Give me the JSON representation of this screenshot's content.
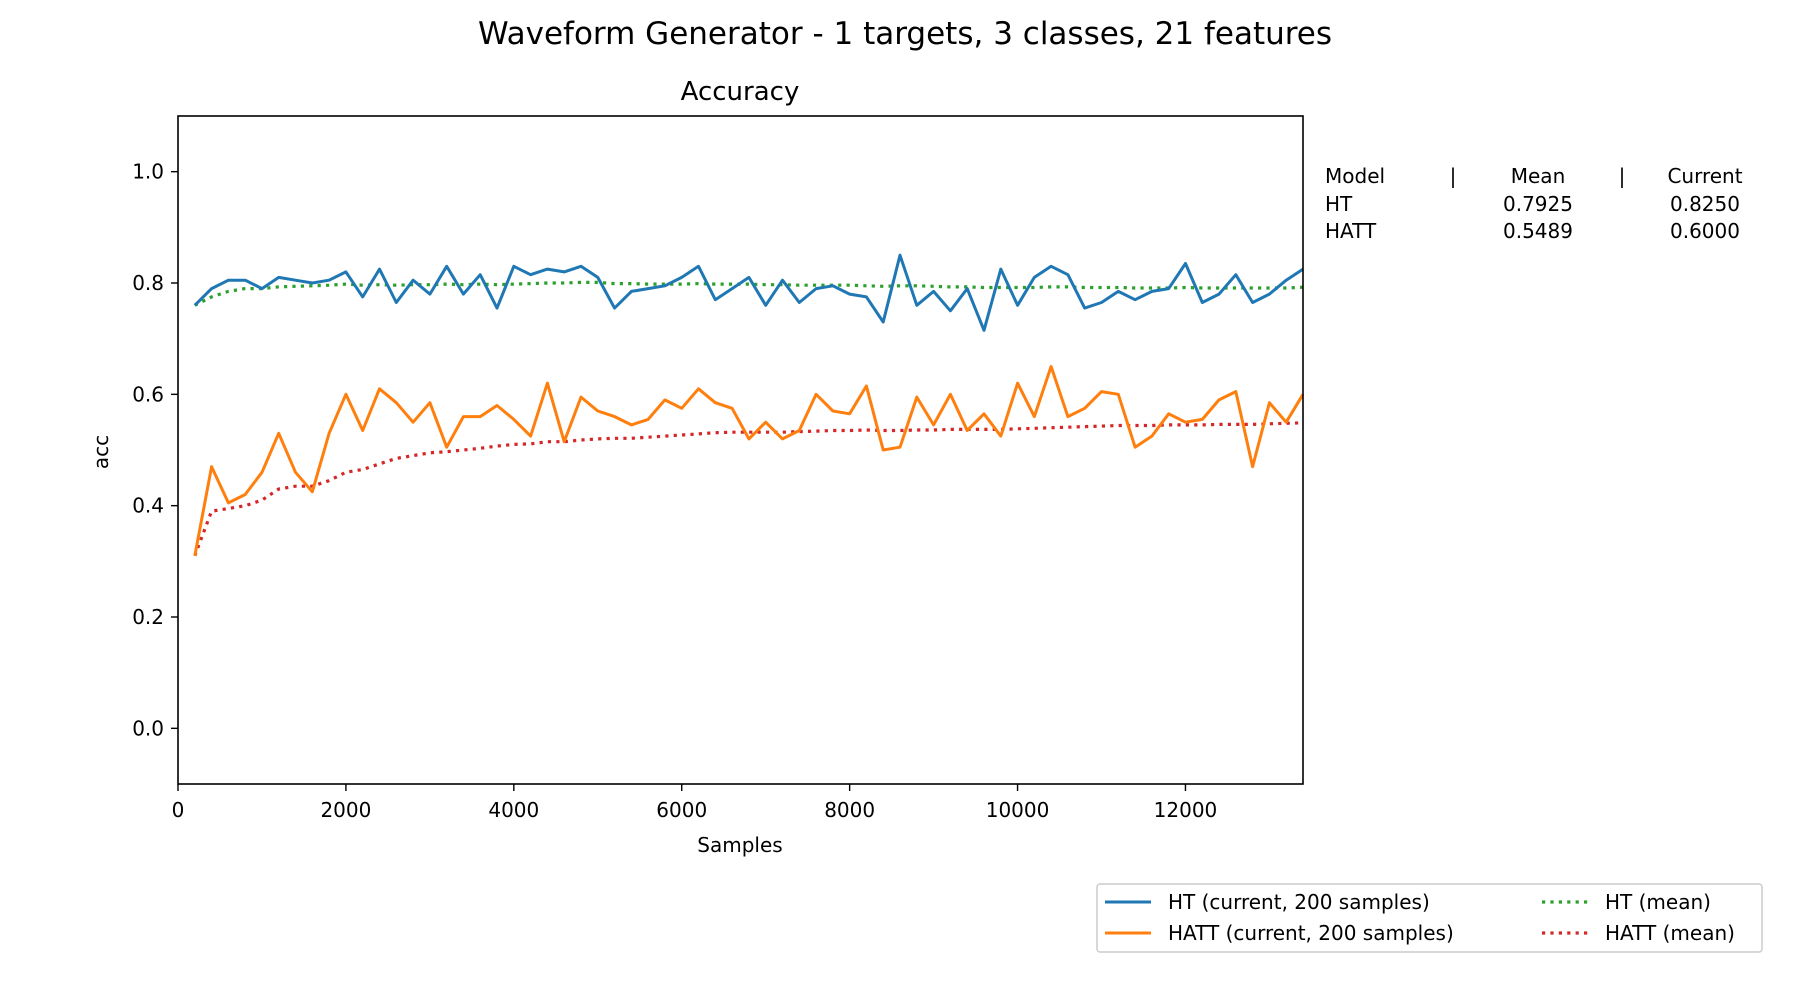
{
  "figure_title": "Waveform Generator - 1 targets, 3 classes, 21 features",
  "chart_data": {
    "type": "line",
    "title": "Accuracy",
    "xlabel": "Samples",
    "ylabel": "acc",
    "xlim": [
      0,
      13400
    ],
    "ylim": [
      -0.1,
      1.1
    ],
    "xticks": [
      0,
      2000,
      4000,
      6000,
      8000,
      10000,
      12000
    ],
    "yticks": [
      0.0,
      0.2,
      0.4,
      0.6,
      0.8,
      1.0
    ],
    "ytick_labels": [
      "0.0",
      "0.2",
      "0.4",
      "0.6",
      "0.8",
      "1.0"
    ],
    "grid": false,
    "legend_position": "bottom-right",
    "x": [
      200,
      400,
      600,
      800,
      1000,
      1200,
      1400,
      1600,
      1800,
      2000,
      2200,
      2400,
      2600,
      2800,
      3000,
      3200,
      3400,
      3600,
      3800,
      4000,
      4200,
      4400,
      4600,
      4800,
      5000,
      5200,
      5400,
      5600,
      5800,
      6000,
      6200,
      6400,
      6600,
      6800,
      7000,
      7200,
      7400,
      7600,
      7800,
      8000,
      8200,
      8400,
      8600,
      8800,
      9000,
      9200,
      9400,
      9600,
      9800,
      10000,
      10200,
      10400,
      10600,
      10800,
      11000,
      11200,
      11400,
      11600,
      11800,
      12000,
      12200,
      12400,
      12600,
      12800,
      13000,
      13200,
      13400
    ],
    "series": [
      {
        "name": "HT  (current, 200 samples)",
        "color": "#1f77b4",
        "style": "solid",
        "values": [
          0.76,
          0.79,
          0.805,
          0.805,
          0.79,
          0.81,
          0.805,
          0.8,
          0.805,
          0.82,
          0.775,
          0.825,
          0.765,
          0.805,
          0.78,
          0.83,
          0.78,
          0.815,
          0.755,
          0.83,
          0.815,
          0.825,
          0.82,
          0.83,
          0.81,
          0.755,
          0.785,
          0.79,
          0.795,
          0.81,
          0.83,
          0.77,
          0.79,
          0.81,
          0.76,
          0.805,
          0.765,
          0.79,
          0.795,
          0.78,
          0.775,
          0.73,
          0.85,
          0.76,
          0.785,
          0.75,
          0.79,
          0.715,
          0.825,
          0.76,
          0.81,
          0.83,
          0.815,
          0.755,
          0.765,
          0.785,
          0.77,
          0.785,
          0.79,
          0.835,
          0.765,
          0.78,
          0.815,
          0.765,
          0.78,
          0.805,
          0.825
        ]
      },
      {
        "name": "HATT  (current, 200 samples)",
        "color": "#ff7f0e",
        "style": "solid",
        "values": [
          0.31,
          0.47,
          0.405,
          0.42,
          0.46,
          0.53,
          0.46,
          0.425,
          0.53,
          0.6,
          0.535,
          0.61,
          0.585,
          0.55,
          0.585,
          0.505,
          0.56,
          0.56,
          0.58,
          0.555,
          0.525,
          0.62,
          0.515,
          0.595,
          0.57,
          0.56,
          0.545,
          0.555,
          0.59,
          0.575,
          0.61,
          0.585,
          0.575,
          0.52,
          0.55,
          0.52,
          0.535,
          0.6,
          0.57,
          0.565,
          0.615,
          0.5,
          0.505,
          0.595,
          0.545,
          0.6,
          0.535,
          0.565,
          0.525,
          0.62,
          0.56,
          0.65,
          0.56,
          0.575,
          0.605,
          0.6,
          0.505,
          0.525,
          0.565,
          0.55,
          0.555,
          0.59,
          0.605,
          0.47,
          0.585,
          0.55,
          0.6
        ]
      },
      {
        "name": "HT (mean)",
        "color": "#2ca02c",
        "style": "dotted",
        "values": [
          0.76,
          0.775,
          0.785,
          0.79,
          0.79,
          0.793,
          0.794,
          0.795,
          0.796,
          0.798,
          0.796,
          0.797,
          0.796,
          0.797,
          0.797,
          0.798,
          0.797,
          0.798,
          0.797,
          0.798,
          0.799,
          0.8,
          0.8,
          0.801,
          0.801,
          0.799,
          0.799,
          0.798,
          0.798,
          0.798,
          0.799,
          0.798,
          0.798,
          0.798,
          0.797,
          0.797,
          0.796,
          0.796,
          0.796,
          0.796,
          0.795,
          0.794,
          0.795,
          0.795,
          0.794,
          0.793,
          0.793,
          0.792,
          0.792,
          0.792,
          0.792,
          0.793,
          0.793,
          0.792,
          0.792,
          0.792,
          0.791,
          0.791,
          0.791,
          0.792,
          0.791,
          0.791,
          0.791,
          0.791,
          0.791,
          0.791,
          0.7925
        ]
      },
      {
        "name": "HATT (mean)",
        "color": "#d62728",
        "style": "dotted",
        "values": [
          0.31,
          0.39,
          0.395,
          0.4,
          0.41,
          0.43,
          0.435,
          0.435,
          0.445,
          0.46,
          0.465,
          0.475,
          0.485,
          0.49,
          0.495,
          0.497,
          0.5,
          0.503,
          0.507,
          0.51,
          0.511,
          0.515,
          0.515,
          0.518,
          0.52,
          0.521,
          0.521,
          0.523,
          0.525,
          0.527,
          0.529,
          0.531,
          0.532,
          0.532,
          0.532,
          0.532,
          0.533,
          0.534,
          0.535,
          0.535,
          0.536,
          0.535,
          0.535,
          0.536,
          0.536,
          0.537,
          0.537,
          0.537,
          0.537,
          0.538,
          0.539,
          0.54,
          0.541,
          0.542,
          0.543,
          0.544,
          0.544,
          0.544,
          0.545,
          0.545,
          0.545,
          0.546,
          0.546,
          0.546,
          0.547,
          0.548,
          0.5489
        ]
      }
    ]
  },
  "stats_table": {
    "header": {
      "model": "Model",
      "sep1": "|",
      "mean": "Mean",
      "sep2": "|",
      "current": "Current"
    },
    "rows": [
      {
        "model": "HT",
        "mean": "0.7925",
        "current": "0.8250"
      },
      {
        "model": "HATT",
        "mean": "0.5489",
        "current": "0.6000"
      }
    ]
  },
  "legend": {
    "items": [
      {
        "label": "HT  (current, 200 samples)",
        "color": "#1f77b4",
        "style": "solid"
      },
      {
        "label": "HT (mean)",
        "color": "#2ca02c",
        "style": "dotted"
      },
      {
        "label": "HATT  (current, 200 samples)",
        "color": "#ff7f0e",
        "style": "solid"
      },
      {
        "label": "HATT (mean)",
        "color": "#d62728",
        "style": "dotted"
      }
    ]
  }
}
